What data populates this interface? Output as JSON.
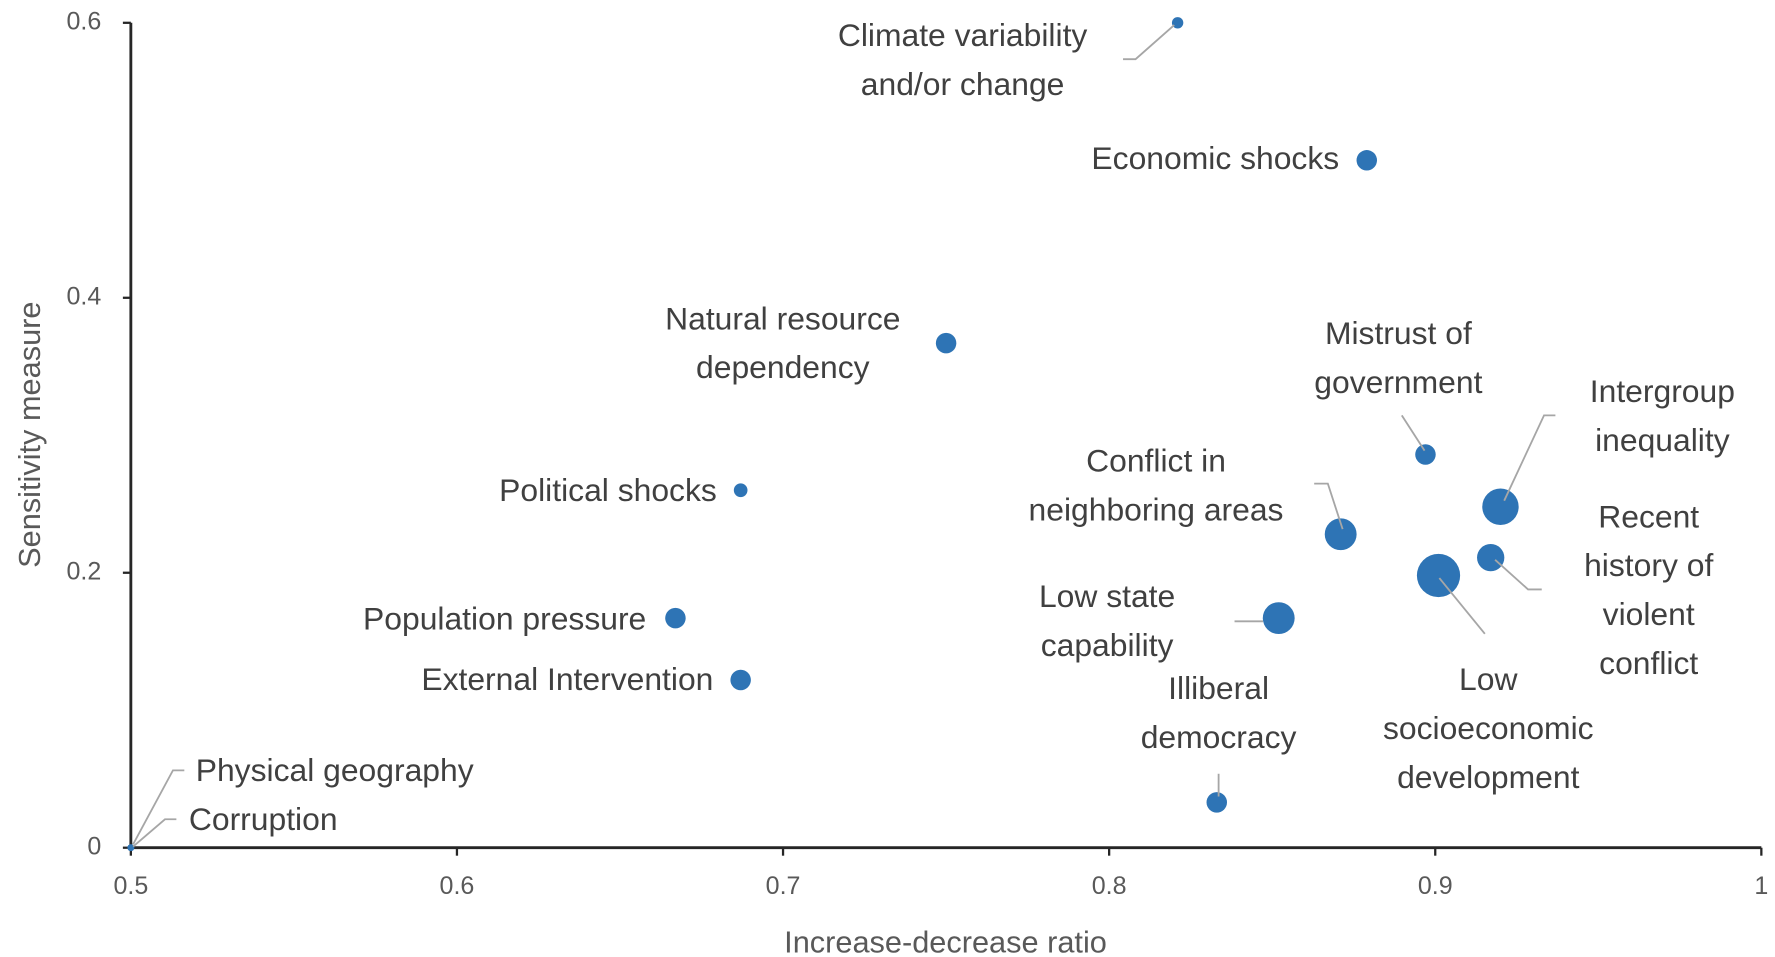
{
  "chart_data": {
    "type": "scatter",
    "x_label": "Increase-decrease ratio",
    "y_label": "Sensitivity measure",
    "color": "#2e74b5",
    "xlim": [
      0.5,
      1
    ],
    "xticks": [
      0.5,
      0.6,
      0.7,
      0.8,
      0.9,
      1
    ],
    "ylim": [
      0,
      0.6
    ],
    "yticks": [
      0,
      0.2,
      0.4,
      0.6
    ],
    "grid": false,
    "labels": [
      [
        "Climate variability",
        "and/or change"
      ],
      [
        "Economic shocks"
      ],
      [
        "Natural resource",
        "dependency"
      ],
      [
        "Political shocks"
      ],
      [
        "Population pressure"
      ],
      [
        "External Intervention"
      ],
      [
        "Physical geography"
      ],
      [
        "Corruption"
      ],
      [
        "Mistrust of",
        "government"
      ],
      [
        "Intergroup",
        "inequality"
      ],
      [
        "Conflict in",
        "neighboring areas"
      ],
      [
        "Recent",
        "history of",
        "violent",
        "conflict"
      ],
      [
        "Low",
        "socioeconomic",
        "development"
      ],
      [
        "Low state",
        "capability"
      ],
      [
        "Illiberal",
        "democracy"
      ]
    ],
    "x": [
      0.821,
      0.879,
      0.75,
      0.687,
      0.667,
      0.687,
      0.5,
      0.5,
      0.897,
      0.92,
      0.871,
      0.917,
      0.901,
      0.852,
      0.833
    ],
    "values": [
      0.6,
      0.5,
      0.367,
      0.26,
      0.167,
      0.122,
      0,
      0,
      0.286,
      0.248,
      0.228,
      0.211,
      0.198,
      0.167,
      0.033
    ],
    "sizes": [
      5,
      9,
      9,
      6,
      9,
      9,
      3,
      3,
      9,
      16,
      14,
      12,
      19,
      14,
      9
    ]
  }
}
